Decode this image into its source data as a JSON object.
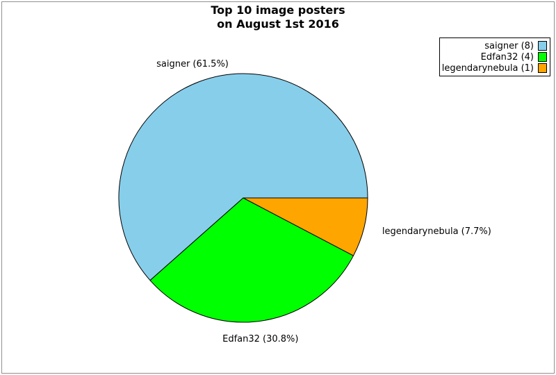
{
  "chart_data": {
    "type": "pie",
    "title": "Top 10 image posters on August 1st 2016",
    "title_lines": [
      "Top 10 image posters",
      "on August 1st 2016"
    ],
    "total": 13,
    "slices": [
      {
        "name": "saigner",
        "value": 8,
        "pct": 61.5,
        "color": "#87CEEB",
        "pie_label": "saigner (61.5%)",
        "legend_label": "saigner (8)"
      },
      {
        "name": "Edfan32",
        "value": 4,
        "pct": 30.8,
        "color": "#00FF00",
        "pie_label": "Edfan32 (30.8%)",
        "legend_label": "Edfan32 (4)"
      },
      {
        "name": "legendarynebula",
        "value": 1,
        "pct": 7.7,
        "color": "#FFA500",
        "pie_label": "legendarynebula (7.7%)",
        "legend_label": "legendarynebula (1)"
      }
    ],
    "start_angle_deg": 0,
    "direction": "counterclockwise",
    "slice_stroke_color": "#000000",
    "background_color": "#FFFFFF",
    "frame_color": "#909090",
    "legend_position": "top-right",
    "grid": false
  }
}
